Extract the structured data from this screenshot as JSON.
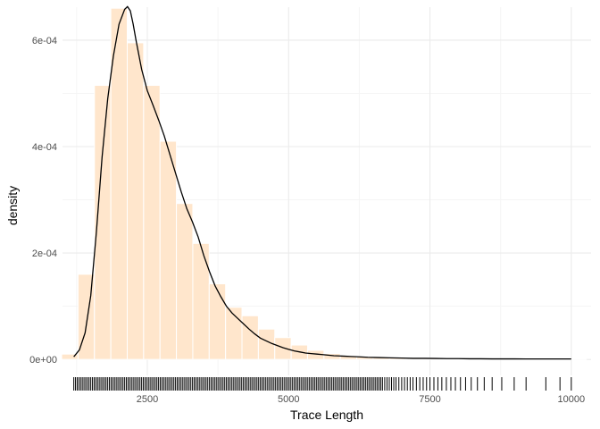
{
  "chart_data": {
    "type": "histogram",
    "xlabel": "Trace Length",
    "ylabel": "density",
    "xlim": [
      1000,
      10350
    ],
    "ylim": [
      -3e-05,
      0.000662
    ],
    "x_ticks": [
      2500,
      5000,
      7500,
      10000
    ],
    "x_tick_labels": [
      "2500",
      "5000",
      "7500",
      "10000"
    ],
    "y_ticks": [
      0,
      0.0002,
      0.0004,
      0.0006
    ],
    "y_tick_labels": [
      "0e+00",
      "2e-04",
      "4e-04",
      "6e-04"
    ],
    "grid": true,
    "legend": "none",
    "colors": {
      "bar_fill": "#FFE6CC",
      "bar_outline": "#FFFFFF",
      "density_line": "#000000",
      "rug": "#000000",
      "grid_major": "#EBEBEB",
      "grid_minor": "#F5F5F5"
    },
    "histogram": {
      "bin_width": 290,
      "bins": [
        {
          "x": 1130,
          "density": 1e-05
        },
        {
          "x": 1420,
          "density": 0.00016
        },
        {
          "x": 1710,
          "density": 0.000515
        },
        {
          "x": 2000,
          "density": 0.00066
        },
        {
          "x": 2290,
          "density": 0.000595
        },
        {
          "x": 2580,
          "density": 0.000515
        },
        {
          "x": 2870,
          "density": 0.00041
        },
        {
          "x": 3160,
          "density": 0.000293
        },
        {
          "x": 3450,
          "density": 0.000218
        },
        {
          "x": 3740,
          "density": 0.000142
        },
        {
          "x": 4030,
          "density": 9.8e-05
        },
        {
          "x": 4320,
          "density": 8.2e-05
        },
        {
          "x": 4610,
          "density": 5.7e-05
        },
        {
          "x": 4900,
          "density": 4.1e-05
        },
        {
          "x": 5190,
          "density": 2.7e-05
        },
        {
          "x": 5480,
          "density": 1.7e-05
        },
        {
          "x": 5770,
          "density": 1.1e-05
        },
        {
          "x": 6060,
          "density": 7e-06
        },
        {
          "x": 6350,
          "density": 5e-06
        },
        {
          "x": 6640,
          "density": 4e-06
        },
        {
          "x": 6930,
          "density": 3e-06
        },
        {
          "x": 7220,
          "density": 2e-06
        },
        {
          "x": 7510,
          "density": 2e-06
        },
        {
          "x": 7800,
          "density": 1.5e-06
        },
        {
          "x": 8090,
          "density": 1e-06
        },
        {
          "x": 8380,
          "density": 1e-06
        },
        {
          "x": 8670,
          "density": 8e-07
        },
        {
          "x": 8960,
          "density": 6e-07
        },
        {
          "x": 9250,
          "density": 5e-07
        },
        {
          "x": 9540,
          "density": 4e-07
        },
        {
          "x": 9830,
          "density": 4e-07
        },
        {
          "x": 10120,
          "density": 4e-07
        }
      ]
    },
    "density_curve": {
      "x": [
        1200,
        1300,
        1400,
        1500,
        1600,
        1700,
        1800,
        1900,
        2000,
        2100,
        2150,
        2200,
        2250,
        2300,
        2400,
        2500,
        2600,
        2700,
        2800,
        2900,
        3000,
        3100,
        3200,
        3300,
        3400,
        3500,
        3600,
        3700,
        3800,
        3900,
        4000,
        4100,
        4200,
        4300,
        4400,
        4500,
        4600,
        4700,
        4800,
        4900,
        5000,
        5100,
        5200,
        5300,
        5400,
        5500,
        5600,
        5700,
        5800,
        5900,
        6000,
        6100,
        6200,
        6400,
        6600,
        6800,
        7000,
        7200,
        7400,
        7600,
        7800,
        8000,
        8200,
        8400,
        8600,
        8800,
        9000,
        9200,
        9400,
        9600,
        9800,
        10000
      ],
      "y": [
        5e-06,
        1.8e-05,
        5e-05,
        0.00012,
        0.00024,
        0.00038,
        0.00049,
        0.00057,
        0.00063,
        0.000658,
        0.000663,
        0.000655,
        0.00063,
        0.0006,
        0.000545,
        0.000505,
        0.000478,
        0.00045,
        0.00042,
        0.000385,
        0.00035,
        0.000315,
        0.000283,
        0.000258,
        0.00023,
        0.000195,
        0.000165,
        0.000138,
        0.000118,
        0.0001,
        8.7e-05,
        7.7e-05,
        6.7e-05,
        5.7e-05,
        4.8e-05,
        4e-05,
        3.5e-05,
        3e-05,
        2.6e-05,
        2.2e-05,
        1.9e-05,
        1.6e-05,
        1.4e-05,
        1.2e-05,
        1.1e-05,
        1e-05,
        9e-06,
        8e-06,
        7e-06,
        6.5e-06,
        6e-06,
        5.5e-06,
        5e-06,
        4e-06,
        3.5e-06,
        3e-06,
        2.5e-06,
        2e-06,
        2e-06,
        1.8e-06,
        1.5e-06,
        1.5e-06,
        1.2e-06,
        1.2e-06,
        1e-06,
        1e-06,
        1e-06,
        8e-07,
        8e-07,
        8e-07,
        8e-07,
        8e-07
      ]
    },
    "rug": [
      1200,
      1230,
      1260,
      1290,
      1320,
      1350,
      1380,
      1410,
      1440,
      1470,
      1500,
      1530,
      1560,
      1590,
      1620,
      1650,
      1680,
      1710,
      1740,
      1770,
      1800,
      1830,
      1860,
      1890,
      1920,
      1950,
      1980,
      2010,
      2040,
      2070,
      2100,
      2130,
      2160,
      2190,
      2220,
      2250,
      2280,
      2310,
      2340,
      2370,
      2400,
      2430,
      2460,
      2490,
      2520,
      2550,
      2580,
      2610,
      2640,
      2670,
      2700,
      2730,
      2760,
      2790,
      2820,
      2850,
      2880,
      2910,
      2940,
      2970,
      3000,
      3030,
      3060,
      3090,
      3120,
      3150,
      3180,
      3210,
      3240,
      3270,
      3300,
      3330,
      3360,
      3390,
      3420,
      3450,
      3480,
      3510,
      3540,
      3570,
      3600,
      3630,
      3660,
      3690,
      3720,
      3750,
      3780,
      3810,
      3840,
      3870,
      3900,
      3930,
      3960,
      3990,
      4020,
      4050,
      4080,
      4110,
      4140,
      4170,
      4200,
      4230,
      4260,
      4290,
      4320,
      4350,
      4380,
      4410,
      4440,
      4470,
      4500,
      4530,
      4560,
      4590,
      4620,
      4650,
      4680,
      4710,
      4740,
      4770,
      4800,
      4830,
      4860,
      4890,
      4920,
      4950,
      4980,
      5010,
      5040,
      5070,
      5100,
      5130,
      5160,
      5190,
      5220,
      5250,
      5280,
      5310,
      5340,
      5370,
      5400,
      5430,
      5460,
      5490,
      5520,
      5550,
      5580,
      5610,
      5640,
      5670,
      5700,
      5730,
      5760,
      5790,
      5820,
      5850,
      5880,
      5910,
      5940,
      5970,
      6000,
      6030,
      6060,
      6090,
      6120,
      6150,
      6180,
      6210,
      6240,
      6270,
      6300,
      6330,
      6360,
      6390,
      6420,
      6450,
      6480,
      6510,
      6540,
      6570,
      6600,
      6630,
      6660,
      6700,
      6740,
      6780,
      6820,
      6860,
      6900,
      6950,
      7000,
      7050,
      7100,
      7150,
      7200,
      7260,
      7320,
      7380,
      7440,
      7500,
      7570,
      7640,
      7710,
      7790,
      7870,
      7950,
      8040,
      8130,
      8230,
      8340,
      8460,
      8600,
      8770,
      8990,
      9200,
      9550,
      9800,
      10000
    ]
  }
}
